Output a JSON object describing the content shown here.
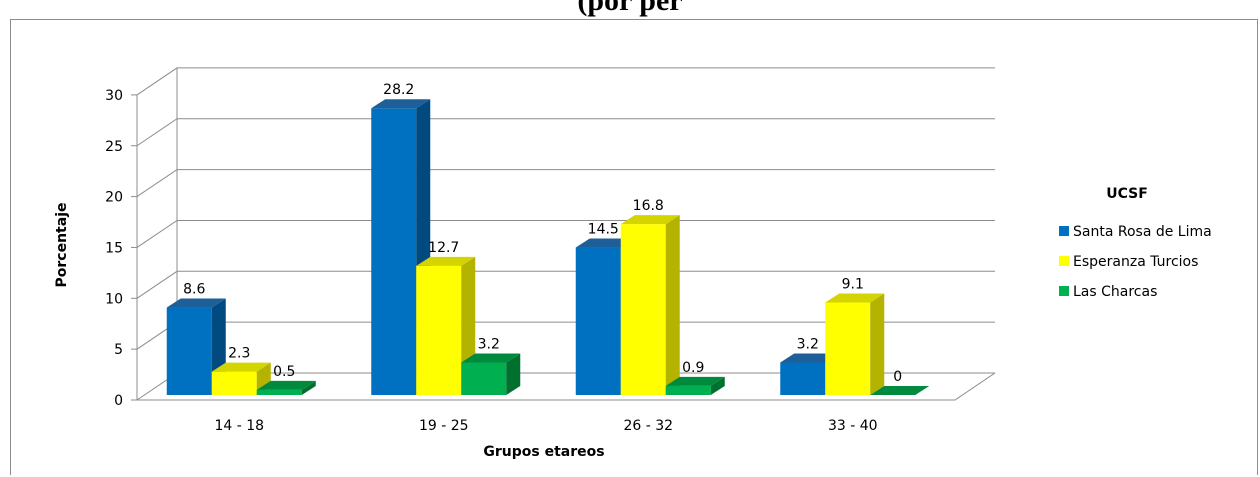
{
  "chart_data": {
    "type": "bar",
    "title": "(por per",
    "xlabel": "Grupos etareos",
    "ylabel": "Porcentaje",
    "categories": [
      "14 - 18",
      "19 - 25",
      "26 - 32",
      "33 - 40"
    ],
    "series": [
      {
        "name": "Santa Rosa de Lima",
        "values": [
          8.6,
          28.2,
          14.5,
          3.2
        ],
        "color": "#0070c0",
        "side": "#004a80",
        "top": "#1f5f99"
      },
      {
        "name": "Esperanza Turcios",
        "values": [
          2.3,
          12.7,
          16.8,
          9.1
        ],
        "color": "#ffff00",
        "side": "#b3b300",
        "top": "#d4d400"
      },
      {
        "name": "Las Charcas",
        "values": [
          0.5,
          3.2,
          0.9,
          0
        ],
        "color": "#00b050",
        "side": "#00702f",
        "top": "#008a3e"
      }
    ],
    "data_labels": [
      [
        "8.6",
        "28.2",
        "14.5",
        "3.2"
      ],
      [
        "2.3",
        "12.7",
        "16.8",
        "9.1"
      ],
      [
        "0.5",
        "3.2",
        "0.9",
        "0"
      ]
    ],
    "ylim": [
      0,
      30
    ],
    "yticks": [
      "0",
      "5",
      "10",
      "15",
      "20",
      "25",
      "30"
    ],
    "legend_title": "UCSF",
    "legend_position": "right",
    "grid": true,
    "three_d": true
  }
}
